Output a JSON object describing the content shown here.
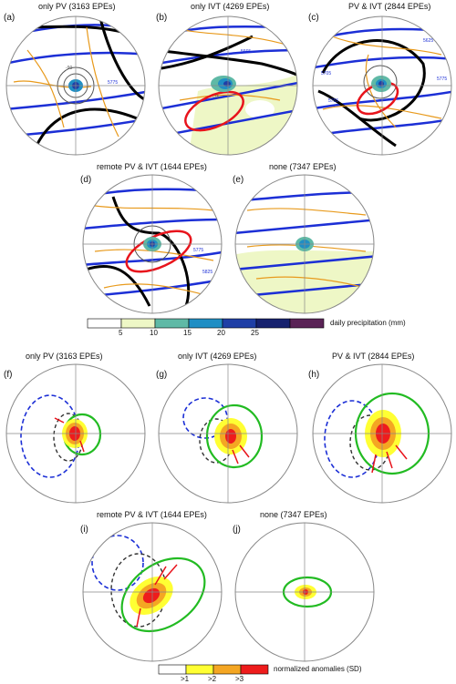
{
  "top_panels": [
    {
      "id": "a",
      "letter": "(a)",
      "title": "only PV (3163 EPEs)",
      "contour_labels": [
        "-90",
        "5775"
      ]
    },
    {
      "id": "b",
      "letter": "(b)",
      "title": "only IVT (4269 EPEs)",
      "contour_labels": [
        "5665",
        "-75"
      ]
    },
    {
      "id": "c",
      "letter": "(c)",
      "title": "PV & IVT (2844 EPEs)",
      "contour_labels": [
        "5625",
        "5705",
        "5775",
        "5755"
      ]
    },
    {
      "id": "d",
      "letter": "(d)",
      "title": "remote PV & IVT (1644 EPEs)",
      "contour_labels": [
        "5775",
        "5825"
      ]
    },
    {
      "id": "e",
      "letter": "(e)",
      "title": "none (7347 EPEs)",
      "contour_labels": []
    }
  ],
  "bottom_panels": [
    {
      "id": "f",
      "letter": "(f)",
      "title": "only PV (3163 EPEs)"
    },
    {
      "id": "g",
      "letter": "(g)",
      "title": "only IVT (4269 EPEs)"
    },
    {
      "id": "h",
      "letter": "(h)",
      "title": "PV & IVT (2844 EPEs)"
    },
    {
      "id": "i",
      "letter": "(i)",
      "title": "remote PV & IVT (1644 EPEs)"
    },
    {
      "id": "j",
      "letter": "(j)",
      "title": "none (7347 EPEs)"
    }
  ],
  "precip_colorbar": {
    "label": "daily precipitation (mm)",
    "ticks": [
      "5",
      "10",
      "15",
      "20",
      "25"
    ],
    "colors": [
      "#ffffff",
      "#eef7c6",
      "#5fb9a6",
      "#1f8ec4",
      "#1f3fa6",
      "#16216e",
      "#5a2356"
    ]
  },
  "anomaly_colorbar": {
    "label": "normalized anomalies (SD)",
    "ticks": [
      ">1",
      ">2",
      ">3"
    ],
    "colors": [
      "#ffffff",
      "#ffff33",
      "#f4a623",
      "#ee1c1c"
    ]
  }
}
